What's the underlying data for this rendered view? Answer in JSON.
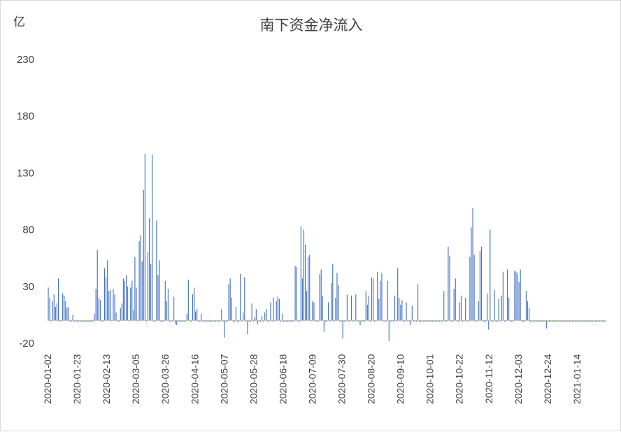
{
  "chart_data": {
    "type": "bar",
    "title": "南下资金净流入",
    "unit_label": "亿",
    "ylim": [
      -20,
      230
    ],
    "yticks": [
      -20,
      30,
      80,
      130,
      180,
      230
    ],
    "grid": false,
    "legend": "none",
    "x_range": [
      "2020-01-02",
      "2021-02-04"
    ],
    "xticks": [
      "2020-01-02",
      "2020-01-23",
      "2020-02-13",
      "2020-03-05",
      "2020-03-26",
      "2020-04-16",
      "2020-05-07",
      "2020-05-28",
      "2020-06-18",
      "2020-07-09",
      "2020-07-30",
      "2020-08-20",
      "2020-09-10",
      "2020-10-01",
      "2020-10-22",
      "2020-11-12",
      "2020-12-03",
      "2020-12-24",
      "2021-01-14"
    ],
    "colors": {
      "bar": "#4472c4",
      "axis": "#bfbfbf",
      "text": "#404040"
    },
    "series": [
      {
        "values": [
          29,
          20,
          -1,
          17,
          23,
          12,
          15,
          37,
          -1,
          -1,
          24,
          22,
          17,
          11,
          12,
          -1,
          -1,
          5,
          -1,
          -1,
          -1,
          -1,
          -1,
          -1,
          -1,
          -1,
          -1,
          -1,
          -1,
          -1,
          -1,
          -1,
          6,
          28,
          62,
          20,
          18,
          -1,
          -1,
          46,
          38,
          53,
          26,
          27,
          -1,
          28,
          23,
          7,
          -1,
          -1,
          11,
          15,
          37,
          35,
          40,
          30,
          -1,
          29,
          35,
          9,
          56,
          29,
          -1,
          70,
          75,
          52,
          115,
          147,
          -1,
          60,
          90,
          50,
          146,
          -1,
          -1,
          88,
          40,
          53,
          -1,
          -1,
          -1,
          35,
          17,
          28,
          -1,
          -1,
          -1,
          21,
          -3,
          -4,
          -1,
          -1,
          -1,
          -1,
          -1,
          -1,
          6,
          36,
          -1,
          -1,
          23,
          29,
          8,
          10,
          -1,
          -1,
          6,
          -1,
          -1,
          -1,
          -1,
          -1,
          -1,
          -1,
          -1,
          -1,
          -1,
          -1,
          -1,
          -1,
          10,
          -1,
          -15,
          -1,
          -1,
          32,
          37,
          20,
          -1,
          -1,
          12,
          -1,
          -1,
          41,
          -1,
          7,
          38,
          -1,
          -12,
          -1,
          -1,
          15,
          -1,
          3,
          10,
          -3,
          -1,
          -1,
          4,
          -1,
          7,
          10,
          -1,
          -1,
          16,
          -1,
          20,
          -1,
          17,
          21,
          19,
          -1,
          6,
          -1,
          -1,
          -1,
          -1,
          -1,
          -1,
          -1,
          -1,
          48,
          47,
          -1,
          -1,
          83,
          37,
          80,
          67,
          26,
          56,
          58,
          -1,
          17,
          16,
          -1,
          -1,
          -1,
          41,
          45,
          22,
          -10,
          -1,
          -1,
          16,
          -1,
          33,
          50,
          -1,
          20,
          42,
          31,
          -1,
          -1,
          -16,
          -1,
          -1,
          23,
          -1,
          -1,
          22,
          -1,
          -1,
          23,
          -1,
          -1,
          -4,
          -1,
          -1,
          -1,
          26,
          14,
          22,
          -1,
          38,
          37,
          -1,
          -1,
          43,
          19,
          35,
          42,
          -1,
          -1,
          -1,
          35,
          -18,
          -1,
          -1,
          -1,
          22,
          -1,
          46,
          20,
          14,
          18,
          -1,
          -1,
          16,
          -1,
          -1,
          -4,
          13,
          -1,
          -1,
          -1,
          32,
          -1,
          -1,
          -1,
          -1,
          -1,
          -1,
          -1,
          -1,
          -1,
          -1,
          -1,
          -1,
          -1,
          -1,
          -1,
          -1,
          -1,
          26,
          -1,
          -1,
          65,
          57,
          -1,
          -1,
          28,
          37,
          -1,
          -1,
          16,
          22,
          -1,
          -1,
          20,
          -1,
          -1,
          56,
          82,
          99,
          58,
          -1,
          -1,
          17,
          61,
          65,
          -1,
          -1,
          -1,
          24,
          -8,
          80,
          -1,
          -1,
          27,
          -1,
          -1,
          19,
          -1,
          22,
          43,
          -1,
          -1,
          45,
          20,
          -1,
          -1,
          -1,
          44,
          43,
          41,
          34,
          45,
          -1,
          -1,
          -1,
          26,
          17,
          11,
          -1,
          -1,
          -1,
          -1,
          -1,
          -1,
          -1,
          -1,
          -1,
          -1,
          -1,
          -7,
          -1,
          -1,
          -1,
          -1,
          -1,
          -1,
          -1,
          -1,
          -1,
          -1,
          -1,
          -1,
          -1,
          -1,
          -1,
          -1,
          -1,
          -1,
          -1,
          -1,
          -1,
          -1,
          -1,
          -1,
          -1,
          -1,
          -1,
          -1,
          -1,
          -1,
          -1,
          -1,
          -1,
          -1,
          -1,
          -1,
          -1,
          -1,
          -1,
          -1,
          -1
        ]
      }
    ]
  }
}
